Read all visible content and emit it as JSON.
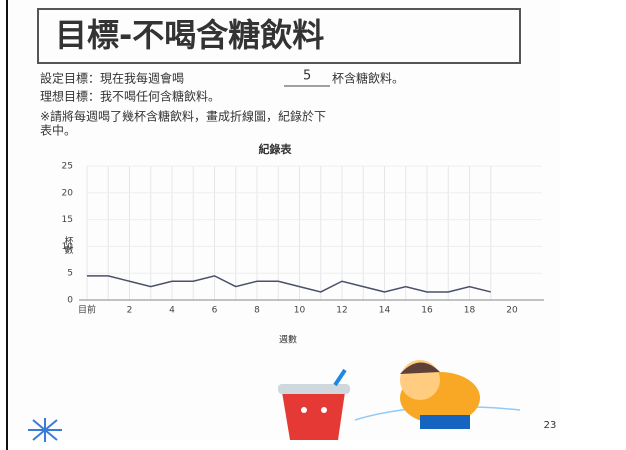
{
  "header": {
    "title": "目標-不喝含糖飲料"
  },
  "goal": {
    "prefix": "設定目標：現在我每週會喝",
    "number": "5",
    "suffix": "杯含糖飲料。"
  },
  "ideal": "理想目標：我不喝任何含糖飲料。",
  "note": [
    "※請將每週喝了幾杯含糖飲料，畫成折線圖，紀錄於下",
    "表中。"
  ],
  "page_number": "23",
  "chart_data": {
    "type": "line",
    "title": "紀錄表",
    "x_label": "週數",
    "y_label": "杯數",
    "x": [
      0,
      1,
      2,
      3,
      4,
      5,
      6,
      7,
      8,
      9,
      10,
      11,
      12,
      13,
      14,
      15,
      16,
      17,
      18,
      19
    ],
    "series": [
      {
        "color": "#4a5068",
        "values": [
          4.5,
          4.5,
          3.5,
          2.5,
          3.5,
          3.5,
          4.5,
          2.5,
          3.5,
          3.5,
          2.5,
          1.5,
          3.5,
          2.5,
          1.5,
          2.5,
          1.5,
          1.5,
          2.5,
          1.5
        ]
      }
    ],
    "xlim": [
      0,
      20
    ],
    "xticks": [
      {
        "value": 0,
        "label": "目前"
      },
      2,
      4,
      6,
      8,
      10,
      12,
      14,
      16,
      18,
      20
    ],
    "ylim": [
      0,
      25
    ],
    "yticks": [
      0,
      5,
      10,
      15,
      20,
      25
    ],
    "grid": true
  }
}
